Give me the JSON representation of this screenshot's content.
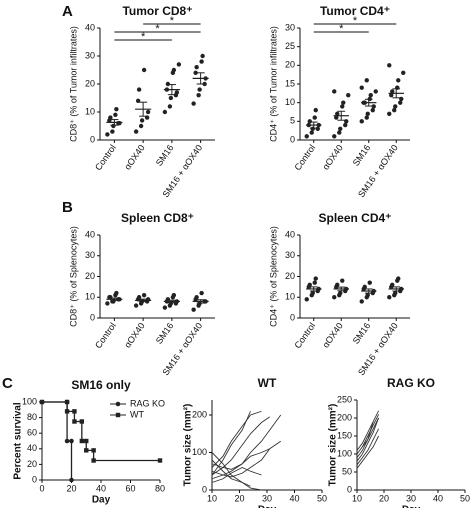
{
  "panel_labels": [
    "A",
    "B",
    "C"
  ],
  "chart_data": [
    {
      "type": "dot",
      "title": "Tumor CD8⁺",
      "ylabel": "CD8⁺ (% of Tumor infiltrates)",
      "categories": [
        "Control",
        "αOX40",
        "SM16",
        "SM16 + αOX40"
      ],
      "series": [
        {
          "color": "#222222",
          "values": [
            [
              2,
              3,
              5,
              6,
              6,
              7,
              8,
              9,
              11
            ],
            [
              3,
              5,
              7,
              8,
              10,
              14,
              18,
              25
            ],
            [
              10,
              12,
              15,
              16,
              17,
              18,
              20,
              24,
              25,
              27
            ],
            [
              13,
              16,
              18,
              20,
              22,
              24,
              26,
              28,
              30
            ]
          ],
          "mean": [
            6.3,
            11,
            18,
            22
          ],
          "sem": [
            1,
            2.5,
            1.8,
            2
          ]
        }
      ],
      "significance": [
        {
          "from": "αOX40",
          "to": "SM16 + αOX40",
          "label": "*"
        },
        {
          "from": "Control",
          "to": "SM16 + αOX40",
          "label": "*"
        },
        {
          "from": "Control",
          "to": "SM16",
          "label": "*"
        }
      ],
      "ylim": [
        0,
        40
      ],
      "yticks": [
        0,
        10,
        20,
        30,
        40
      ]
    },
    {
      "type": "dot",
      "title": "Tumor CD4⁺",
      "ylabel": "CD4⁺ (% of Tumor infiltrates)",
      "categories": [
        "Control",
        "αOX40",
        "SM16",
        "SM16 + αOX40"
      ],
      "series": [
        {
          "color": "#222222",
          "values": [
            [
              1,
              2,
              3,
              3,
              4,
              4,
              5,
              6,
              8
            ],
            [
              1,
              2,
              3,
              4,
              5,
              6,
              7,
              9,
              10,
              12,
              13
            ],
            [
              5,
              6,
              7,
              8,
              9,
              10,
              10,
              11,
              12,
              13,
              14,
              16
            ],
            [
              7,
              8,
              9,
              10,
              11,
              12,
              13,
              14,
              16,
              18,
              20
            ]
          ],
          "mean": [
            4,
            6.5,
            10,
            12.5
          ],
          "sem": [
            0.8,
            1.2,
            0.9,
            1.2
          ]
        }
      ],
      "significance": [
        {
          "from": "Control",
          "to": "SM16 + αOX40",
          "label": "*"
        },
        {
          "from": "Control",
          "to": "SM16",
          "label": "*"
        }
      ],
      "ylim": [
        0,
        30
      ],
      "yticks": [
        0,
        5,
        10,
        15,
        20,
        25,
        30
      ]
    },
    {
      "type": "dot",
      "title": "Spleen CD8⁺",
      "ylabel": "CD8⁺ (% of Splenocytes)",
      "categories": [
        "Control",
        "αOX40",
        "SM16",
        "SM16 + αOX40"
      ],
      "series": [
        {
          "color": "#222222",
          "values": [
            [
              7,
              8,
              8,
              9,
              9,
              10,
              10,
              11,
              12
            ],
            [
              6,
              7,
              8,
              8,
              9,
              9,
              10,
              11
            ],
            [
              5,
              6,
              7,
              7,
              8,
              8,
              9,
              10,
              11
            ],
            [
              4,
              6,
              7,
              8,
              8,
              9,
              10,
              12
            ]
          ],
          "mean": [
            9,
            8.5,
            8,
            8
          ],
          "sem": [
            0.6,
            0.6,
            0.6,
            0.8
          ]
        }
      ],
      "ylim": [
        0,
        40
      ],
      "yticks": [
        0,
        10,
        20,
        30,
        40
      ]
    },
    {
      "type": "dot",
      "title": "Spleen CD4⁺",
      "ylabel": "CD4⁺ (% of Splenocytes)",
      "categories": [
        "Control",
        "αOX40",
        "SM16",
        "SM16 + αOX40"
      ],
      "series": [
        {
          "color": "#222222",
          "values": [
            [
              9,
              11,
              12,
              13,
              14,
              15,
              16,
              17,
              19
            ],
            [
              10,
              11,
              12,
              13,
              14,
              15,
              16,
              18
            ],
            [
              8,
              10,
              11,
              12,
              13,
              14,
              15,
              17
            ],
            [
              10,
              11,
              12,
              13,
              14,
              15,
              16,
              18,
              19
            ]
          ],
          "mean": [
            14,
            14,
            13,
            14
          ],
          "sem": [
            1,
            0.9,
            1,
            1
          ]
        }
      ],
      "ylim": [
        0,
        40
      ],
      "yticks": [
        0,
        10,
        20,
        30,
        40
      ]
    },
    {
      "type": "survival",
      "title": "SM16 only",
      "ylabel": "Percent survival",
      "xlabel": "Day",
      "series": [
        {
          "name": "RAG KO",
          "color": "#222222",
          "marker": "circle",
          "x": [
            0,
            17,
            17,
            20,
            20
          ],
          "values": [
            100,
            100,
            50,
            50,
            0
          ]
        },
        {
          "name": "WT",
          "color": "#222222",
          "marker": "square",
          "x": [
            0,
            17,
            17,
            22,
            22,
            27,
            27,
            30,
            30,
            35,
            35,
            80
          ],
          "values": [
            100,
            100,
            88,
            88,
            75,
            75,
            50,
            50,
            38,
            38,
            25,
            25
          ]
        }
      ],
      "xlim": [
        0,
        80
      ],
      "xticks": [
        0,
        20,
        40,
        60,
        80
      ],
      "ylim": [
        0,
        100
      ],
      "yticks": [
        0,
        20,
        40,
        60,
        80,
        100
      ]
    },
    {
      "type": "line",
      "title": "WT",
      "ylabel": "Tumor size (mm²)",
      "xlabel": "Day",
      "series": [
        {
          "color": "#333333",
          "x": [
            10,
            14,
            17,
            21,
            24,
            28
          ],
          "values": [
            60,
            90,
            130,
            170,
            200,
            210
          ]
        },
        {
          "color": "#333333",
          "x": [
            10,
            14,
            17,
            21,
            24,
            28,
            31
          ],
          "values": [
            40,
            60,
            80,
            120,
            150,
            180,
            195
          ]
        },
        {
          "color": "#333333",
          "x": [
            10,
            14,
            17,
            21,
            24,
            28,
            31,
            35
          ],
          "values": [
            30,
            40,
            50,
            70,
            100,
            130,
            160,
            200
          ]
        },
        {
          "color": "#333333",
          "x": [
            10,
            14,
            17,
            21,
            24,
            28,
            31,
            35
          ],
          "values": [
            50,
            40,
            35,
            45,
            60,
            80,
            110,
            130
          ]
        },
        {
          "color": "#333333",
          "x": [
            10,
            14,
            17,
            21,
            24
          ],
          "values": [
            80,
            50,
            30,
            20,
            10
          ]
        },
        {
          "color": "#333333",
          "x": [
            10,
            14,
            17,
            21,
            24,
            28
          ],
          "values": [
            20,
            30,
            45,
            60,
            50,
            40
          ]
        },
        {
          "color": "#333333",
          "x": [
            10,
            14,
            17,
            21,
            24,
            28
          ],
          "values": [
            100,
            70,
            40,
            20,
            5,
            0
          ]
        },
        {
          "color": "#333333",
          "x": [
            10,
            14,
            17,
            21,
            24
          ],
          "values": [
            40,
            80,
            120,
            160,
            210
          ]
        },
        {
          "color": "#333333",
          "x": [
            10,
            14,
            17,
            21,
            24,
            28,
            31
          ],
          "values": [
            70,
            60,
            55,
            70,
            90,
            100,
            110
          ]
        }
      ],
      "xlim": [
        10,
        50
      ],
      "xticks": [
        10,
        20,
        30,
        40,
        50
      ],
      "ylim": [
        0,
        240
      ],
      "yticks": [
        0,
        100,
        200
      ]
    },
    {
      "type": "line",
      "title": "RAG KO",
      "ylabel": "Tumor size (mm²)",
      "xlabel": "Day",
      "series": [
        {
          "color": "#333333",
          "x": [
            10,
            12,
            14,
            16,
            18
          ],
          "values": [
            80,
            100,
            130,
            160,
            200
          ]
        },
        {
          "color": "#333333",
          "x": [
            10,
            12,
            14,
            16,
            18
          ],
          "values": [
            100,
            120,
            150,
            180,
            210
          ]
        },
        {
          "color": "#333333",
          "x": [
            10,
            12,
            14,
            16,
            18
          ],
          "values": [
            70,
            90,
            110,
            140,
            170
          ]
        },
        {
          "color": "#333333",
          "x": [
            10,
            12,
            14,
            16
          ],
          "values": [
            90,
            110,
            140,
            190
          ]
        },
        {
          "color": "#333333",
          "x": [
            10,
            12,
            14,
            16,
            18
          ],
          "values": [
            60,
            80,
            100,
            120,
            150
          ]
        },
        {
          "color": "#333333",
          "x": [
            10,
            12,
            14,
            16,
            18
          ],
          "values": [
            110,
            130,
            160,
            190,
            220
          ]
        },
        {
          "color": "#333333",
          "x": [
            12,
            14,
            16,
            18
          ],
          "values": [
            120,
            140,
            170,
            200
          ]
        }
      ],
      "xlim": [
        10,
        50
      ],
      "xticks": [
        10,
        20,
        30,
        40,
        50
      ],
      "ylim": [
        0,
        250
      ],
      "yticks": [
        0,
        50,
        100,
        150,
        200,
        250
      ]
    }
  ]
}
